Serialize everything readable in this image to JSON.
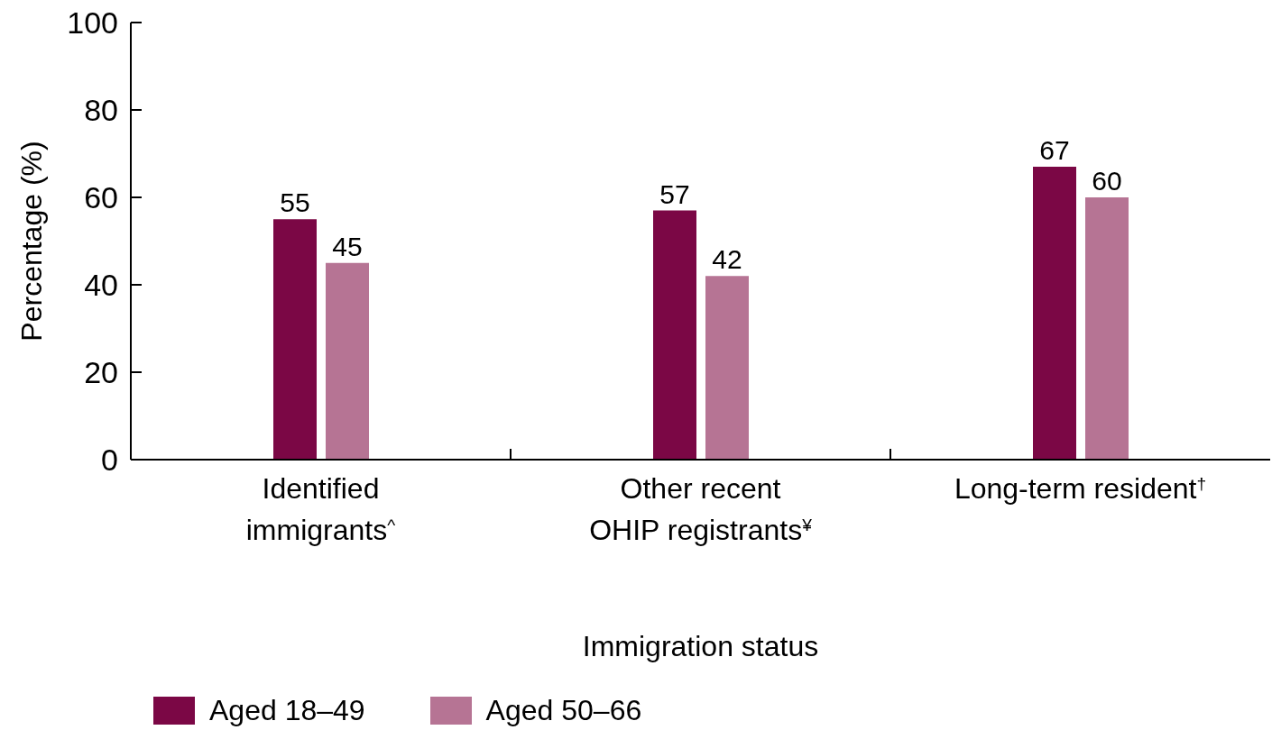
{
  "chart_data": {
    "type": "bar",
    "xlabel": "Immigration status",
    "ylabel": "Percentage (%)",
    "categories": [
      "Identified immigrants$^{^}$",
      "Other recent OHIP registrants$^{¥}$",
      "Long-term resident$^{†}$"
    ],
    "series": [
      {
        "name": "Aged 18–49",
        "color": "#7b0745",
        "values": [
          55,
          57,
          67
        ]
      },
      {
        "name": "Aged 50–66",
        "color": "#b67494",
        "values": [
          45,
          42,
          60
        ]
      }
    ],
    "ylim": [
      0,
      100
    ],
    "yticks": [
      0,
      20,
      40,
      60,
      80,
      100
    ],
    "data_labels": true,
    "legend": "bottom left"
  }
}
